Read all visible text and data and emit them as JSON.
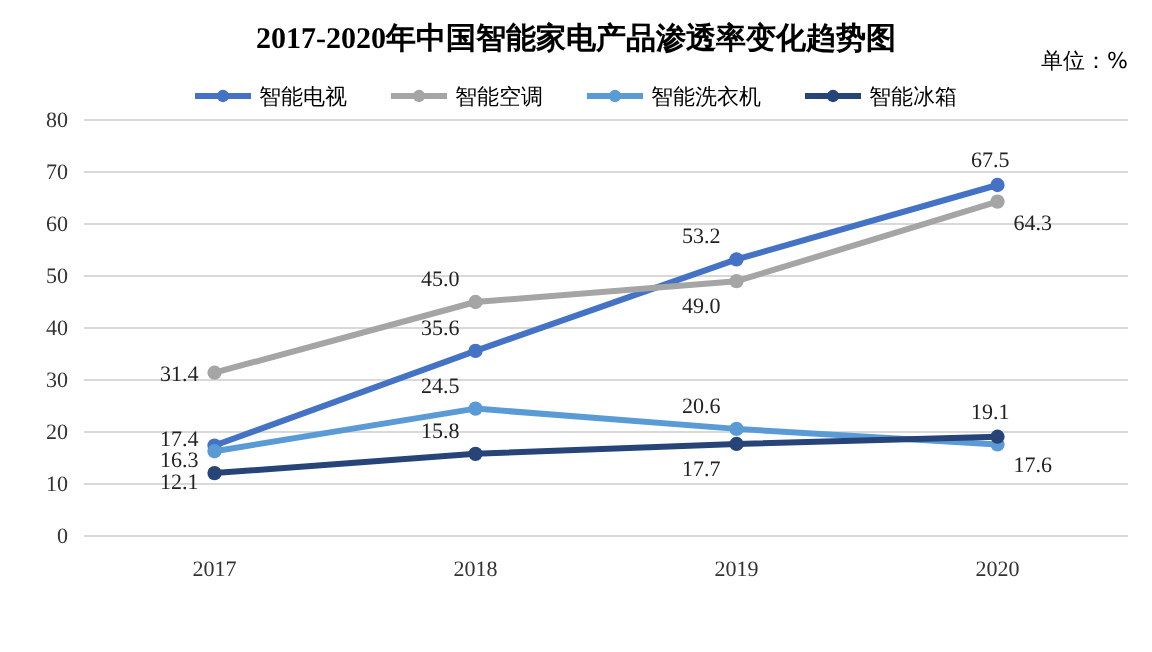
{
  "chart_data": {
    "type": "line",
    "title": "2017-2020年中国智能家电产品渗透率变化趋势图",
    "annotations": [
      "单位：%"
    ],
    "categories": [
      "2017",
      "2018",
      "2019",
      "2020"
    ],
    "series": [
      {
        "name": "智能电视",
        "color": "#4472c4",
        "values": [
          17.4,
          35.6,
          53.2,
          67.5
        ],
        "value_labels": [
          "17.4",
          "35.6",
          "53.2",
          "67.5"
        ]
      },
      {
        "name": "智能空调",
        "color": "#a5a5a5",
        "values": [
          31.4,
          45.0,
          49.0,
          64.3
        ],
        "value_labels": [
          "31.4",
          "45.0",
          "49.0",
          "64.3"
        ]
      },
      {
        "name": "智能洗衣机",
        "color": "#5b9bd5",
        "values": [
          16.3,
          24.5,
          20.6,
          17.6
        ],
        "value_labels": [
          "16.3",
          "24.5",
          "20.6",
          "17.6"
        ]
      },
      {
        "name": "智能冰箱",
        "color": "#264478",
        "values": [
          12.1,
          15.8,
          17.7,
          19.1
        ],
        "value_labels": [
          "12.1",
          "15.8",
          "17.7",
          "19.1"
        ]
      }
    ],
    "ylim": [
      0,
      80
    ],
    "yticks": [
      0,
      10,
      20,
      30,
      40,
      50,
      60,
      70,
      80
    ],
    "grid": "y",
    "legend": "top",
    "marker": "circle",
    "line_style": "solid"
  }
}
